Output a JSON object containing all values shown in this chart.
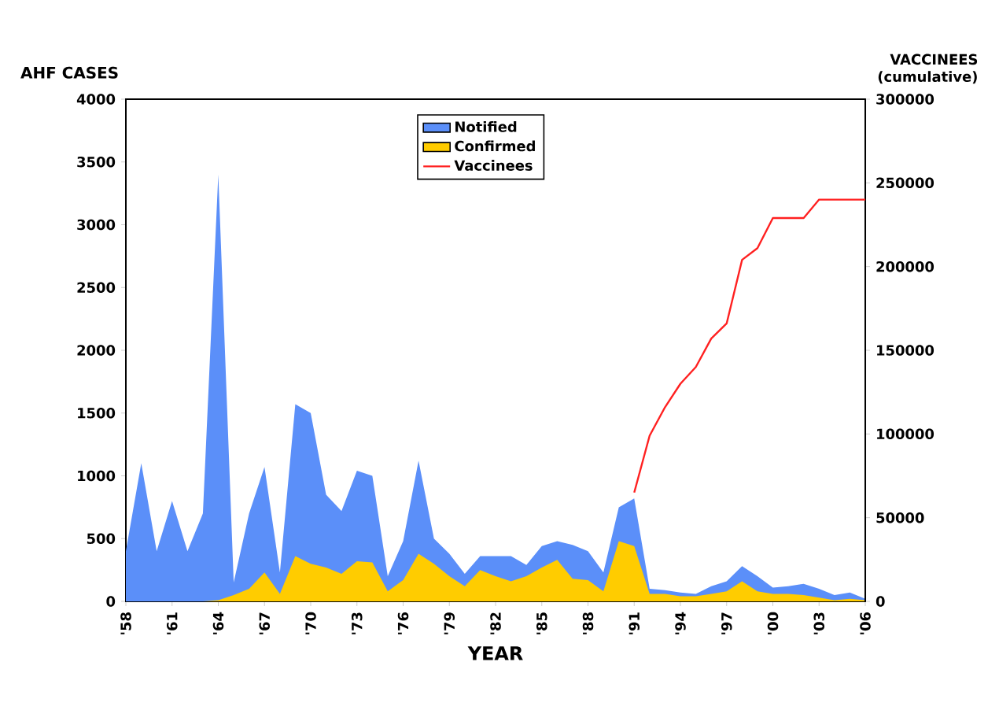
{
  "chart_data": {
    "type": "area",
    "ylabel": "AHF CASES",
    "y2label": "VACCINEES (cumulative)",
    "xlabel": "YEAR",
    "categories": [
      "'58",
      null,
      null,
      "'61",
      null,
      null,
      "'64",
      null,
      null,
      "'67",
      null,
      null,
      "'70",
      null,
      null,
      "'73",
      null,
      null,
      "'76",
      null,
      null,
      "'79",
      null,
      null,
      "'82",
      null,
      null,
      "'85",
      null,
      null,
      "'88",
      null,
      null,
      "'91",
      null,
      null,
      "'94",
      null,
      null,
      "'97",
      null,
      null,
      "'00",
      null,
      null,
      "'03",
      null,
      null,
      "'06"
    ],
    "series": [
      {
        "name": "Notified",
        "color": "#5b8ff9",
        "values": [
          400,
          1100,
          400,
          800,
          400,
          700,
          3400,
          150,
          700,
          1070,
          230,
          1570,
          1500,
          850,
          720,
          1040,
          1000,
          200,
          480,
          1120,
          500,
          380,
          220,
          360,
          360,
          360,
          290,
          440,
          480,
          450,
          400,
          230,
          750,
          820,
          100,
          90,
          70,
          60,
          120,
          160,
          280,
          200,
          110,
          120,
          140,
          100,
          50,
          70,
          20
        ]
      },
      {
        "name": "Confirmed",
        "color": "#ffcc00",
        "values": [
          0,
          0,
          0,
          0,
          0,
          0,
          10,
          50,
          100,
          230,
          60,
          360,
          300,
          270,
          220,
          320,
          310,
          80,
          170,
          380,
          300,
          200,
          120,
          250,
          200,
          160,
          200,
          270,
          330,
          180,
          170,
          80,
          480,
          440,
          60,
          60,
          40,
          40,
          60,
          80,
          160,
          80,
          60,
          60,
          50,
          30,
          10,
          20,
          10
        ]
      },
      {
        "name": "Vaccinees",
        "type": "line",
        "axis": "y2",
        "color": "#ff2020",
        "values": [
          null,
          null,
          null,
          null,
          null,
          null,
          null,
          null,
          null,
          null,
          null,
          null,
          null,
          null,
          null,
          null,
          null,
          null,
          null,
          null,
          null,
          null,
          null,
          null,
          null,
          null,
          null,
          null,
          null,
          null,
          null,
          null,
          null,
          65000,
          99000,
          116000,
          130000,
          140000,
          157000,
          166000,
          204000,
          211000,
          229000,
          229000,
          229000,
          240000,
          240000,
          240000,
          240000
        ]
      }
    ],
    "ylim": [
      0,
      4000
    ],
    "yticks": [
      0,
      500,
      1000,
      1500,
      2000,
      2500,
      3000,
      3500,
      4000
    ],
    "y2lim": [
      0,
      300000
    ],
    "y2ticks": [
      0,
      50000,
      100000,
      150000,
      200000,
      250000,
      300000
    ],
    "legend": "top"
  }
}
